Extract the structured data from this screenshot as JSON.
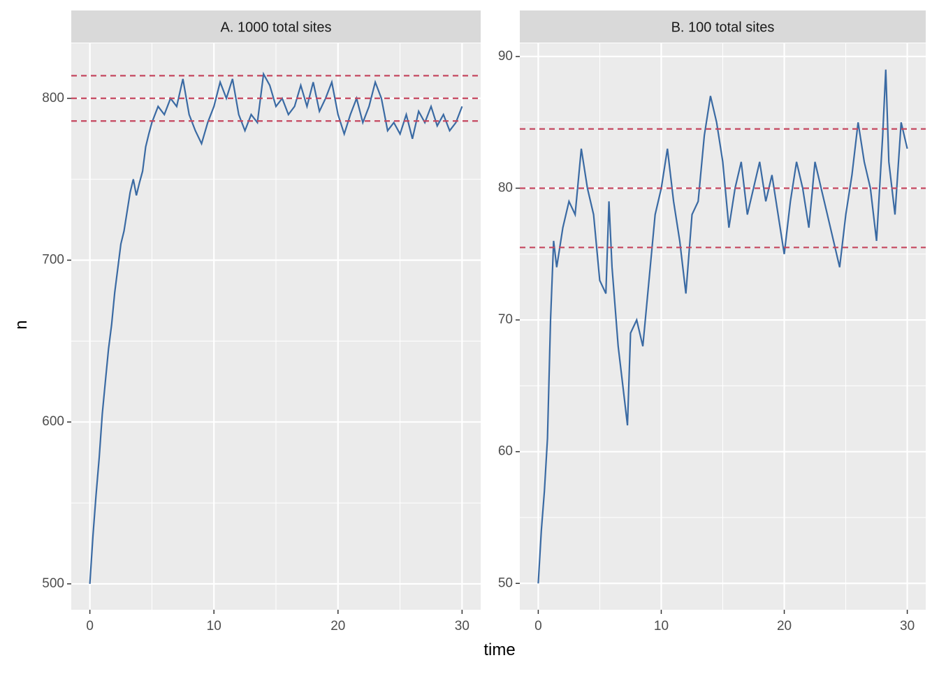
{
  "chart_data": [
    {
      "type": "line",
      "title": "A. 1000 total sites",
      "xlabel": "time",
      "ylabel": "n",
      "x": [
        0,
        0.25,
        0.5,
        0.75,
        1,
        1.25,
        1.5,
        1.75,
        2,
        2.25,
        2.5,
        2.75,
        3,
        3.25,
        3.5,
        3.75,
        4,
        4.25,
        4.5,
        4.75,
        5,
        5.5,
        6,
        6.5,
        7,
        7.5,
        8,
        8.5,
        9,
        9.5,
        10,
        10.5,
        11,
        11.5,
        12,
        12.5,
        13,
        13.5,
        14,
        14.5,
        15,
        15.5,
        16,
        16.5,
        17,
        17.5,
        18,
        18.5,
        19,
        19.5,
        20,
        20.5,
        21,
        21.5,
        22,
        22.5,
        23,
        23.5,
        24,
        24.5,
        25,
        25.5,
        26,
        26.5,
        27,
        27.5,
        28,
        28.5,
        29,
        29.5,
        30
      ],
      "series": [
        {
          "color": "#3a6aa3",
          "values": [
            500,
            530,
            555,
            578,
            605,
            625,
            645,
            660,
            680,
            695,
            710,
            718,
            730,
            742,
            750,
            740,
            748,
            755,
            770,
            778,
            785,
            795,
            790,
            800,
            795,
            812,
            790,
            780,
            772,
            785,
            795,
            810,
            800,
            812,
            790,
            780,
            790,
            785,
            815,
            808,
            795,
            800,
            790,
            795,
            808,
            795,
            810,
            792,
            800,
            810,
            790,
            778,
            790,
            800,
            785,
            795,
            810,
            800,
            780,
            785,
            778,
            790,
            775,
            792,
            785,
            795,
            783,
            790,
            780,
            785,
            795
          ]
        }
      ],
      "hlines": {
        "values": [
          814,
          800,
          786
        ],
        "color": "#c5475f"
      },
      "xlim": [
        -1.5,
        31.5
      ],
      "ylim": [
        484,
        834
      ],
      "xticks": [
        0,
        10,
        20,
        30
      ],
      "yticks": [
        500,
        600,
        700,
        800
      ],
      "xminor": [
        5,
        15,
        25
      ],
      "yminor": [
        550,
        650,
        750
      ],
      "grid": true
    },
    {
      "type": "line",
      "title": "B. 100 total sites",
      "x": [
        0,
        0.25,
        0.5,
        0.75,
        1,
        1.25,
        1.5,
        2,
        2.5,
        3,
        3.5,
        4,
        4.5,
        5,
        5.5,
        5.75,
        6,
        6.5,
        7,
        7.25,
        7.5,
        8,
        8.5,
        9,
        9.5,
        10,
        10.5,
        11,
        11.5,
        12,
        12.5,
        13,
        13.5,
        14,
        14.5,
        15,
        15.5,
        16,
        16.5,
        17,
        17.5,
        18,
        18.5,
        19,
        19.5,
        20,
        20.5,
        21,
        21.5,
        22,
        22.5,
        23,
        23.5,
        24,
        24.5,
        25,
        25.5,
        26,
        26.5,
        27,
        27.5,
        28,
        28.25,
        28.5,
        29,
        29.5,
        30
      ],
      "series": [
        {
          "color": "#3a6aa3",
          "values": [
            50,
            54,
            57,
            61,
            70,
            76,
            74,
            77,
            79,
            78,
            83,
            80,
            78,
            73,
            72,
            79,
            74,
            68,
            64,
            62,
            69,
            70,
            68,
            73,
            78,
            80,
            83,
            79,
            76,
            72,
            78,
            79,
            84,
            87,
            85,
            82,
            77,
            80,
            82,
            78,
            80,
            82,
            79,
            81,
            78,
            75,
            79,
            82,
            80,
            77,
            82,
            80,
            78,
            76,
            74,
            78,
            81,
            85,
            82,
            80,
            76,
            84,
            89,
            82,
            78,
            85,
            83
          ]
        }
      ],
      "hlines": {
        "values": [
          84.5,
          80,
          75.5
        ],
        "color": "#c5475f"
      },
      "xlim": [
        -1.5,
        31.5
      ],
      "ylim": [
        48,
        91
      ],
      "xticks": [
        0,
        10,
        20,
        30
      ],
      "yticks": [
        50,
        60,
        70,
        80,
        90
      ],
      "xminor": [
        5,
        15,
        25
      ],
      "yminor": [
        55,
        65,
        75,
        85
      ],
      "grid": true
    }
  ]
}
